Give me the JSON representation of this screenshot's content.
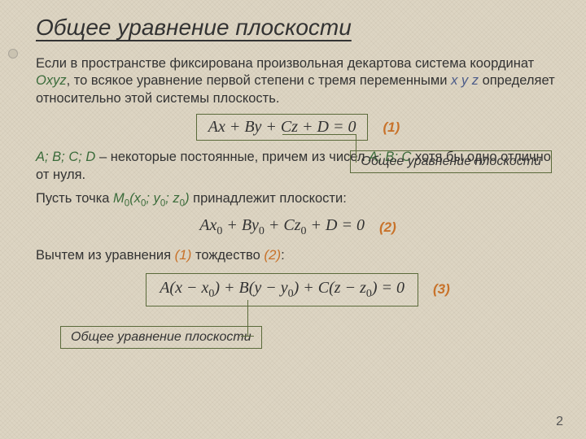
{
  "title": "Общее уравнение плоскости",
  "p1_a": "Если в пространстве фиксирована произвольная декартова система координат ",
  "p1_oxyz": "Oxyz",
  "p1_b": ", то всякое уравнение первой степени с тремя переменными ",
  "p1_xyz": "x y z",
  "p1_c": " определяет относительно этой системы плоскость.",
  "eq1": "Ax + By + Cz + D = 0",
  "eqn1": "(1)",
  "label1": "Общее уравнение плоскости",
  "p2_abcd": "A; B; C; D",
  "p2_a": " – некоторые постоянные, причем из чисел ",
  "p2_abc": "A; B; C",
  "p2_b": " хотя бы одно отлично от нуля.",
  "p3_a": "Пусть точка ",
  "p3_m": "M",
  "p3_b": " принадлежит плоскости:",
  "eq2_html": "Ax<sub>0</sub> + By<sub>0</sub> + Cz<sub>0</sub> + D = 0",
  "eqn2": "(2)",
  "p4_a": "Вычтем из уравнения ",
  "p4_r1": "(1)",
  "p4_b": " тождество ",
  "p4_r2": "(2)",
  "p4_c": ":",
  "eq3_html": "A(x − x<sub>0</sub>) + B(y − y<sub>0</sub>) + C(z − z<sub>0</sub>) = 0",
  "eqn3": "(3)",
  "label3": "Общее уравнение плоскости",
  "pagenum": "2",
  "colors": {
    "bg": "#ddd5c3",
    "accent_green": "#3a6b3a",
    "accent_blue": "#4a5a88",
    "orange": "#c8722a",
    "box_border": "#5a6a3a"
  }
}
